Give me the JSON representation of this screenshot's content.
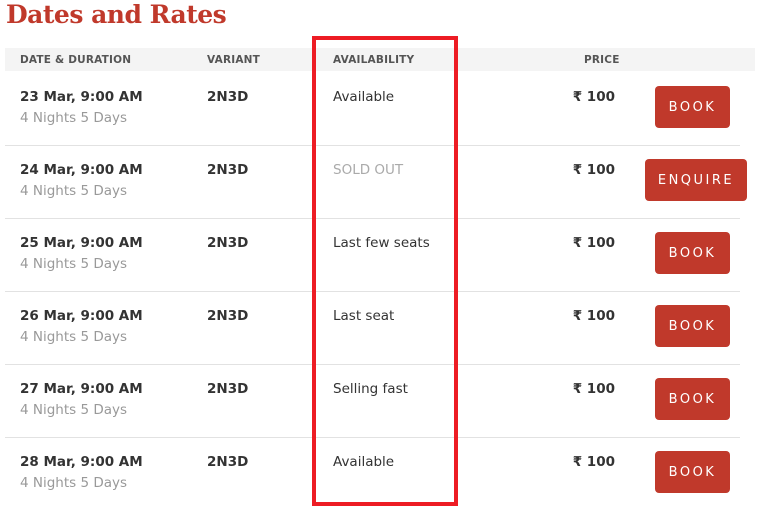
{
  "title": "Dates and Rates",
  "headers": {
    "date": "DATE & DURATION",
    "variant": "VARIANT",
    "availability": "AVAILABILITY",
    "price": "PRICE"
  },
  "rows": [
    {
      "date": "23 Mar, 9:00 AM",
      "duration": "4 Nights 5 Days",
      "variant": "2N3D",
      "availability": "Available",
      "price": "₹ 100",
      "action": "BOOK"
    },
    {
      "date": "24 Mar, 9:00 AM",
      "duration": "4 Nights 5 Days",
      "variant": "2N3D",
      "availability": "SOLD OUT",
      "price": "₹ 100",
      "action": "ENQUIRE"
    },
    {
      "date": "25 Mar, 9:00 AM",
      "duration": "4 Nights 5 Days",
      "variant": "2N3D",
      "availability": "Last few seats",
      "price": "₹ 100",
      "action": "BOOK"
    },
    {
      "date": "26 Mar, 9:00 AM",
      "duration": "4 Nights 5 Days",
      "variant": "2N3D",
      "availability": "Last seat",
      "price": "₹ 100",
      "action": "BOOK"
    },
    {
      "date": "27 Mar, 9:00 AM",
      "duration": "4 Nights 5 Days",
      "variant": "2N3D",
      "availability": "Selling fast",
      "price": "₹ 100",
      "action": "BOOK"
    },
    {
      "date": "28 Mar, 9:00 AM",
      "duration": "4 Nights 5 Days",
      "variant": "2N3D",
      "availability": "Available",
      "price": "₹ 100",
      "action": "BOOK"
    }
  ],
  "colors": {
    "brand": "#c0392b",
    "highlight": "#ed1c24"
  }
}
